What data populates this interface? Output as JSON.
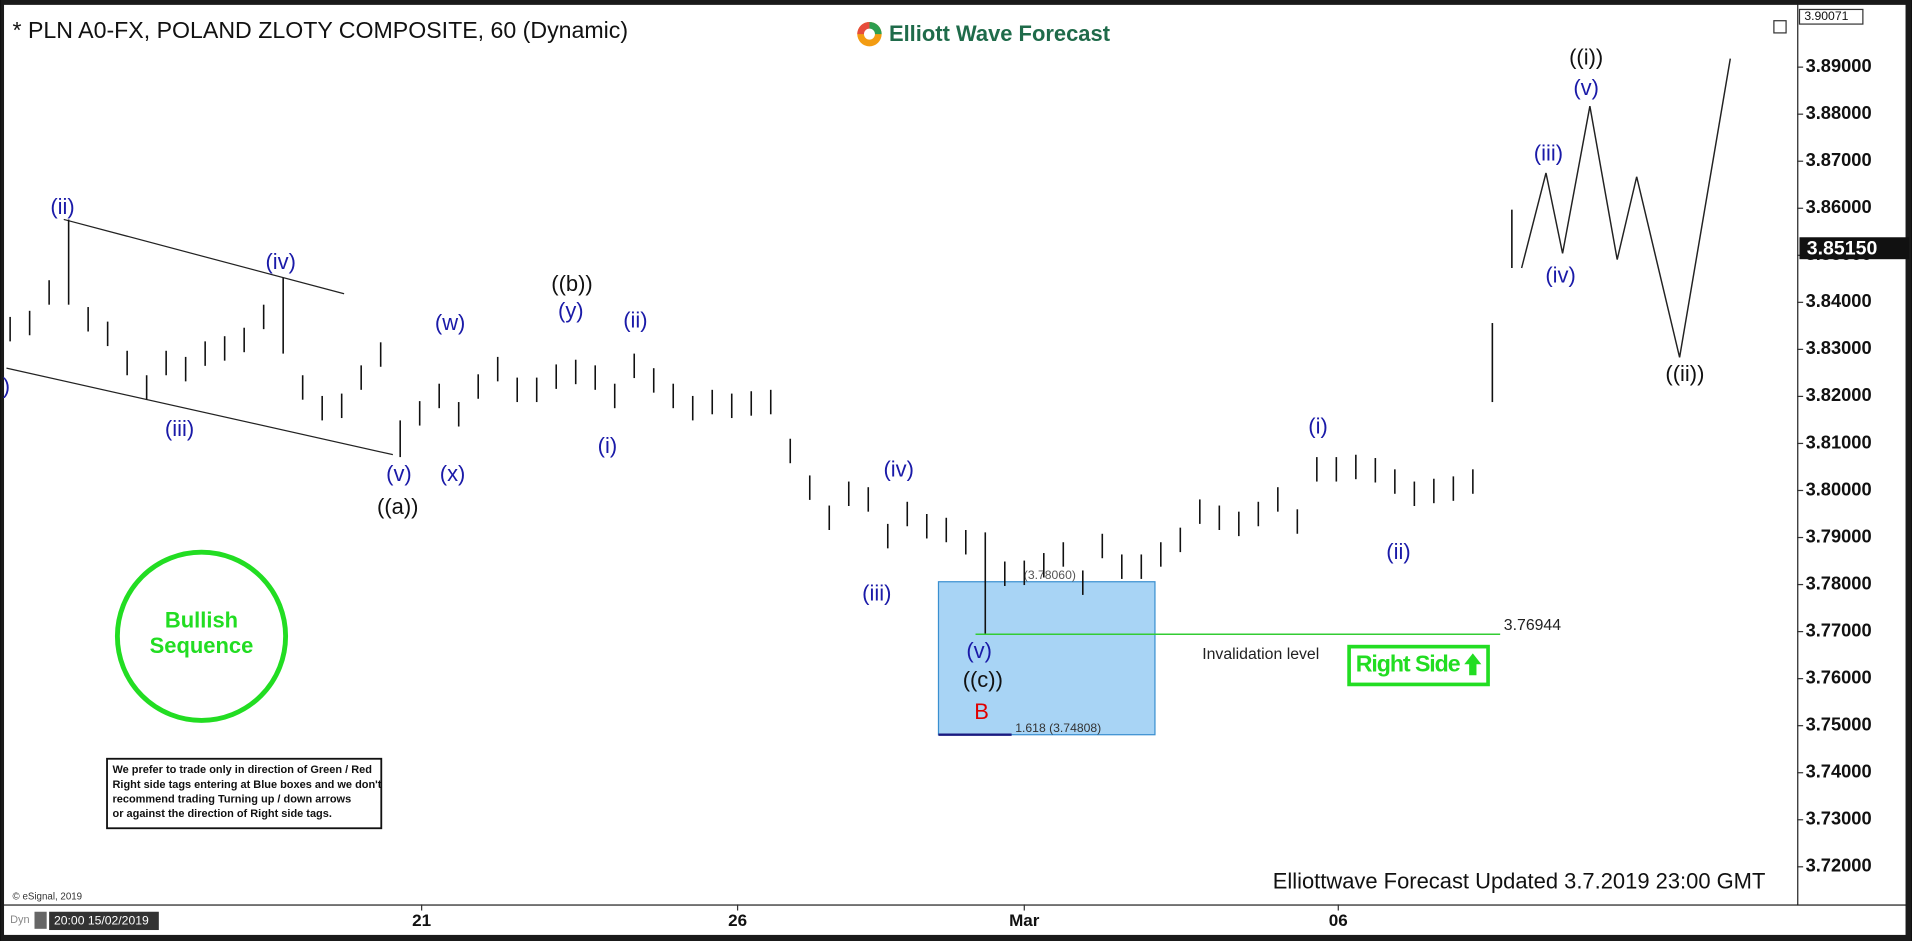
{
  "chart_data": {
    "type": "ohlc",
    "title": "* PLN A0-FX, POLAND ZLOTY COMPOSITE, 60 (Dynamic)",
    "logo": "Elliott Wave Forecast",
    "xlim": [
      -0.5,
      91.56
    ],
    "ylim": [
      3.712,
      3.9022
    ],
    "yticks": [
      {
        "value": 3.72,
        "label": "3.72000"
      },
      {
        "value": 3.73,
        "label": "3.73000"
      },
      {
        "value": 3.74,
        "label": "3.74000"
      },
      {
        "value": 3.75,
        "label": "3.75000"
      },
      {
        "value": 3.76,
        "label": "3.76000"
      },
      {
        "value": 3.77,
        "label": "3.77000"
      },
      {
        "value": 3.78,
        "label": "3.78000"
      },
      {
        "value": 3.79,
        "label": "3.79000"
      },
      {
        "value": 3.8,
        "label": "3.80000"
      },
      {
        "value": 3.81,
        "label": "3.81000"
      },
      {
        "value": 3.82,
        "label": "3.82000"
      },
      {
        "value": 3.83,
        "label": "3.83000"
      },
      {
        "value": 3.84,
        "label": "3.84000"
      },
      {
        "value": 3.85,
        "label": "3.85000"
      },
      {
        "value": 3.86,
        "label": "3.86000"
      },
      {
        "value": 3.87,
        "label": "3.87000"
      },
      {
        "value": 3.88,
        "label": "3.88000"
      },
      {
        "value": 3.89,
        "label": "3.89000"
      }
    ],
    "xticks": [
      {
        "value": 21.1,
        "label": "21"
      },
      {
        "value": 37.3,
        "label": "26"
      },
      {
        "value": 52,
        "label": "Mar"
      },
      {
        "value": 68.1,
        "label": "06"
      }
    ],
    "high": [
      3.8369,
      3.8382,
      3.8447,
      3.8576,
      3.839,
      3.8359,
      3.8297,
      3.8245,
      3.8297,
      3.8284,
      3.8317,
      3.8328,
      3.8346,
      3.8395,
      3.8452,
      3.8245,
      3.8201,
      3.8206,
      3.8266,
      3.8315,
      3.8149,
      3.819,
      3.8227,
      3.8188,
      3.8247,
      3.8284,
      3.824,
      3.824,
      3.8268,
      3.8278,
      3.8266,
      3.8227,
      3.8291,
      3.826,
      3.8227,
      3.8201,
      3.8214,
      3.8206,
      3.8211,
      3.8214,
      3.811,
      3.8032,
      3.7968,
      3.8019,
      3.8007,
      3.7929,
      3.7976,
      3.795,
      3.7942,
      3.7916,
      3.7911,
      3.7849,
      3.7851,
      3.7867,
      3.789,
      3.783,
      3.7908,
      3.7864,
      3.7864,
      3.789,
      3.7921,
      3.7981,
      3.7968,
      3.7955,
      3.7976,
      3.8007,
      3.796,
      3.8071,
      3.8071,
      3.8076,
      3.8069,
      3.8045,
      3.8019,
      3.8025,
      3.803,
      3.8045,
      3.8356,
      3.8597
    ],
    "low": [
      3.8317,
      3.833,
      3.8395,
      3.8395,
      3.8338,
      3.8307,
      3.8245,
      3.8193,
      3.8245,
      3.8232,
      3.8265,
      3.8276,
      3.8294,
      3.8343,
      3.8291,
      3.8193,
      3.8149,
      3.8154,
      3.8214,
      3.8263,
      3.8071,
      3.8138,
      3.8175,
      3.8136,
      3.8195,
      3.8232,
      3.8188,
      3.8188,
      3.8216,
      3.8226,
      3.8214,
      3.8175,
      3.8239,
      3.8208,
      3.8175,
      3.8149,
      3.8162,
      3.8154,
      3.8159,
      3.8162,
      3.8058,
      3.798,
      3.7916,
      3.7967,
      3.7955,
      3.7877,
      3.7924,
      3.7898,
      3.789,
      3.7864,
      3.7693,
      3.7797,
      3.7799,
      3.7815,
      3.7838,
      3.7778,
      3.7856,
      3.7812,
      3.7812,
      3.7838,
      3.7869,
      3.7929,
      3.7916,
      3.7903,
      3.7924,
      3.7955,
      3.7908,
      3.8019,
      3.8019,
      3.8024,
      3.8017,
      3.7993,
      3.7967,
      3.7973,
      3.7978,
      3.7993,
      3.8188,
      3.8473
    ],
    "bar_color": "#111111",
    "projection": {
      "x": [
        77.5,
        78.75,
        79.6,
        81,
        82.4,
        83.4,
        85.6,
        88.2
      ],
      "y": [
        3.8473,
        3.8675,
        3.8504,
        3.8817,
        3.8491,
        3.8667,
        3.8283,
        3.8918
      ]
    },
    "levels": [
      {
        "value": 3.7806,
        "label": "(3.78060)"
      },
      {
        "value": 3.74808,
        "label": "1.618 (3.74808)"
      }
    ],
    "blue_box_x": [
      47.6,
      58.7
    ],
    "blue_box_color": "#a8d4f5",
    "invalidation": {
      "value": 3.76944,
      "label": "Invalidation level",
      "x": [
        49.5,
        76.4
      ],
      "color": "#33cc33"
    },
    "last_price": {
      "value": 3.8515,
      "label": "3.85150"
    },
    "top_price": {
      "value": 3.90071,
      "label": "3.90071"
    },
    "wave_labels": [
      {
        "text": ")",
        "color": "#1a1aa8"
      },
      {
        "text": "(ii)",
        "color": "#1a1aa8"
      },
      {
        "text": "(iv)",
        "color": "#1a1aa8"
      },
      {
        "text": "(iii)",
        "color": "#1a1aa8"
      },
      {
        "text": "(v)",
        "color": "#1a1aa8"
      },
      {
        "text": "((a))",
        "color": "#111111"
      },
      {
        "text": "(w)",
        "color": "#1a1aa8"
      },
      {
        "text": "(x)",
        "color": "#1a1aa8"
      },
      {
        "text": "((b))",
        "color": "#111111"
      },
      {
        "text": "(y)",
        "color": "#1a1aa8"
      },
      {
        "text": "(ii)",
        "color": "#1a1aa8"
      },
      {
        "text": "(i)",
        "color": "#1a1aa8"
      },
      {
        "text": "(iii)",
        "color": "#1a1aa8"
      },
      {
        "text": "(iv)",
        "color": "#1a1aa8"
      },
      {
        "text": "(v)",
        "color": "#1a1aa8"
      },
      {
        "text": "((c))",
        "color": "#111111"
      },
      {
        "text": "B",
        "color": "#e00000"
      },
      {
        "text": "(i)",
        "color": "#1a1aa8"
      },
      {
        "text": "(ii)",
        "color": "#1a1aa8"
      },
      {
        "text": "(iii)",
        "color": "#1a1aa8"
      },
      {
        "text": "(iv)",
        "color": "#1a1aa8"
      },
      {
        "text": "(v)",
        "color": "#1a1aa8"
      },
      {
        "text": "((i))",
        "color": "#111111"
      },
      {
        "text": "((ii))",
        "color": "#111111"
      }
    ],
    "sequence_badge": [
      "Bullish",
      "Sequence"
    ],
    "right_side_tag": "Right Side",
    "disclaimer": [
      "We prefer to trade only in direction of Green / Red",
      "Right side tags entering at Blue boxes and we don't",
      "recommend trading Turning up / down arrows",
      "or against the direction of Right side tags."
    ],
    "footer": "Elliottwave Forecast Updated 3.7.2019 23:00 GMT",
    "copyright": "© eSignal, 2019",
    "mode": "Dyn",
    "start_time": "20:00 15/02/2019"
  }
}
